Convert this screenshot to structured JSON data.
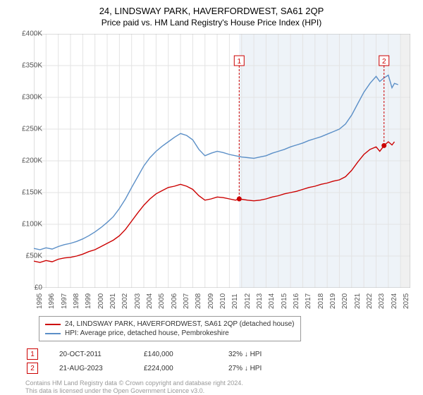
{
  "title": "24, LINDSWAY PARK, HAVERFORDWEST, SA61 2QP",
  "subtitle": "Price paid vs. HM Land Registry's House Price Index (HPI)",
  "chart": {
    "type": "line",
    "background_color": "#ffffff",
    "grid_color": "#e3e3e3",
    "shaded_region_color": "#eef3f8",
    "end_stripe_color": "#f0f0f0",
    "xlim": [
      1995,
      2025.8
    ],
    "ylim": [
      0,
      400000
    ],
    "ytick_step": 50000,
    "yticks": [
      "£0",
      "£50K",
      "£100K",
      "£150K",
      "£200K",
      "£250K",
      "£300K",
      "£350K",
      "£400K"
    ],
    "xticks": [
      "1995",
      "1996",
      "1997",
      "1998",
      "1999",
      "2000",
      "2001",
      "2002",
      "2003",
      "2004",
      "2005",
      "2006",
      "2007",
      "2008",
      "2009",
      "2010",
      "2011",
      "2012",
      "2013",
      "2014",
      "2015",
      "2016",
      "2017",
      "2018",
      "2019",
      "2020",
      "2021",
      "2022",
      "2023",
      "2024",
      "2025"
    ],
    "axis_font_size": 10,
    "axis_color": "#666666",
    "line_width": 1.4,
    "shaded_start_year": 2011.8,
    "series": [
      {
        "name": "property",
        "label": "24, LINDSWAY PARK, HAVERFORDWEST, SA61 2QP (detached house)",
        "color": "#cc0000",
        "data": [
          [
            1995.0,
            42000
          ],
          [
            1995.5,
            40000
          ],
          [
            1996.0,
            43000
          ],
          [
            1996.5,
            41000
          ],
          [
            1997.0,
            45000
          ],
          [
            1997.5,
            47000
          ],
          [
            1998.0,
            48000
          ],
          [
            1998.5,
            50000
          ],
          [
            1999.0,
            53000
          ],
          [
            1999.5,
            57000
          ],
          [
            2000.0,
            60000
          ],
          [
            2000.5,
            65000
          ],
          [
            2001.0,
            70000
          ],
          [
            2001.5,
            75000
          ],
          [
            2002.0,
            82000
          ],
          [
            2002.5,
            92000
          ],
          [
            2003.0,
            105000
          ],
          [
            2003.5,
            118000
          ],
          [
            2004.0,
            130000
          ],
          [
            2004.5,
            140000
          ],
          [
            2005.0,
            148000
          ],
          [
            2005.5,
            153000
          ],
          [
            2006.0,
            158000
          ],
          [
            2006.5,
            160000
          ],
          [
            2007.0,
            163000
          ],
          [
            2007.5,
            160000
          ],
          [
            2008.0,
            155000
          ],
          [
            2008.5,
            145000
          ],
          [
            2009.0,
            138000
          ],
          [
            2009.5,
            140000
          ],
          [
            2010.0,
            143000
          ],
          [
            2010.5,
            142000
          ],
          [
            2011.0,
            140000
          ],
          [
            2011.5,
            138000
          ],
          [
            2011.8,
            140000
          ],
          [
            2012.5,
            138000
          ],
          [
            2013.0,
            137000
          ],
          [
            2013.5,
            138000
          ],
          [
            2014.0,
            140000
          ],
          [
            2014.5,
            143000
          ],
          [
            2015.0,
            145000
          ],
          [
            2015.5,
            148000
          ],
          [
            2016.0,
            150000
          ],
          [
            2016.5,
            152000
          ],
          [
            2017.0,
            155000
          ],
          [
            2017.5,
            158000
          ],
          [
            2018.0,
            160000
          ],
          [
            2018.5,
            163000
          ],
          [
            2019.0,
            165000
          ],
          [
            2019.5,
            168000
          ],
          [
            2020.0,
            170000
          ],
          [
            2020.5,
            175000
          ],
          [
            2021.0,
            185000
          ],
          [
            2021.5,
            198000
          ],
          [
            2022.0,
            210000
          ],
          [
            2022.5,
            218000
          ],
          [
            2023.0,
            222000
          ],
          [
            2023.3,
            215000
          ],
          [
            2023.65,
            224000
          ],
          [
            2024.0,
            230000
          ],
          [
            2024.3,
            225000
          ],
          [
            2024.5,
            230000
          ]
        ]
      },
      {
        "name": "hpi",
        "label": "HPI: Average price, detached house, Pembrokeshire",
        "color": "#5b8fc7",
        "data": [
          [
            1995.0,
            62000
          ],
          [
            1995.5,
            60000
          ],
          [
            1996.0,
            63000
          ],
          [
            1996.5,
            61000
          ],
          [
            1997.0,
            65000
          ],
          [
            1997.5,
            68000
          ],
          [
            1998.0,
            70000
          ],
          [
            1998.5,
            73000
          ],
          [
            1999.0,
            77000
          ],
          [
            1999.5,
            82000
          ],
          [
            2000.0,
            88000
          ],
          [
            2000.5,
            95000
          ],
          [
            2001.0,
            103000
          ],
          [
            2001.5,
            112000
          ],
          [
            2002.0,
            125000
          ],
          [
            2002.5,
            140000
          ],
          [
            2003.0,
            158000
          ],
          [
            2003.5,
            175000
          ],
          [
            2004.0,
            192000
          ],
          [
            2004.5,
            205000
          ],
          [
            2005.0,
            215000
          ],
          [
            2005.5,
            223000
          ],
          [
            2006.0,
            230000
          ],
          [
            2006.5,
            237000
          ],
          [
            2007.0,
            243000
          ],
          [
            2007.5,
            240000
          ],
          [
            2008.0,
            233000
          ],
          [
            2008.5,
            218000
          ],
          [
            2009.0,
            208000
          ],
          [
            2009.5,
            212000
          ],
          [
            2010.0,
            215000
          ],
          [
            2010.5,
            213000
          ],
          [
            2011.0,
            210000
          ],
          [
            2011.5,
            208000
          ],
          [
            2012.0,
            206000
          ],
          [
            2012.5,
            205000
          ],
          [
            2013.0,
            204000
          ],
          [
            2013.5,
            206000
          ],
          [
            2014.0,
            208000
          ],
          [
            2014.5,
            212000
          ],
          [
            2015.0,
            215000
          ],
          [
            2015.5,
            218000
          ],
          [
            2016.0,
            222000
          ],
          [
            2016.5,
            225000
          ],
          [
            2017.0,
            228000
          ],
          [
            2017.5,
            232000
          ],
          [
            2018.0,
            235000
          ],
          [
            2018.5,
            238000
          ],
          [
            2019.0,
            242000
          ],
          [
            2019.5,
            246000
          ],
          [
            2020.0,
            250000
          ],
          [
            2020.5,
            258000
          ],
          [
            2021.0,
            272000
          ],
          [
            2021.5,
            290000
          ],
          [
            2022.0,
            308000
          ],
          [
            2022.5,
            322000
          ],
          [
            2023.0,
            333000
          ],
          [
            2023.3,
            325000
          ],
          [
            2023.6,
            330000
          ],
          [
            2024.0,
            335000
          ],
          [
            2024.3,
            315000
          ],
          [
            2024.5,
            322000
          ],
          [
            2024.8,
            320000
          ]
        ]
      }
    ],
    "markers": [
      {
        "id": "1",
        "x": 2011.8,
        "y_top": 350000,
        "point_y": 140000
      },
      {
        "id": "2",
        "x": 2023.65,
        "y_top": 350000,
        "point_y": 224000
      }
    ]
  },
  "legend": {
    "border_color": "#999999",
    "font_size": 10
  },
  "marker_table": [
    {
      "id": "1",
      "date": "20-OCT-2011",
      "price": "£140,000",
      "diff": "32% ↓ HPI"
    },
    {
      "id": "2",
      "date": "21-AUG-2023",
      "price": "£224,000",
      "diff": "27% ↓ HPI"
    }
  ],
  "footer": {
    "line1": "Contains HM Land Registry data © Crown copyright and database right 2024.",
    "line2": "This data is licensed under the Open Government Licence v3.0.",
    "color": "#999999",
    "font_size": 9
  }
}
